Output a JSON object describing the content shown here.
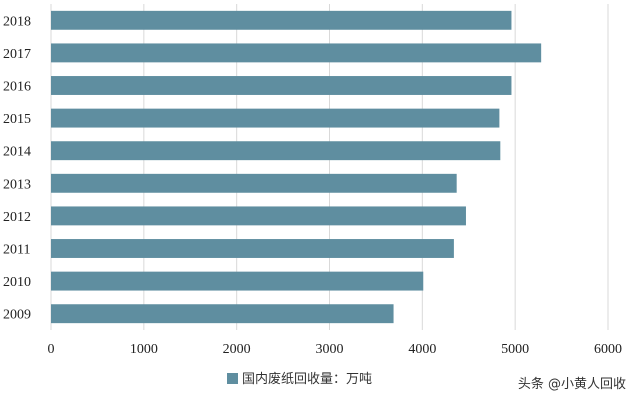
{
  "chart_data": {
    "type": "bar",
    "orientation": "horizontal",
    "categories": [
      "2018",
      "2017",
      "2016",
      "2015",
      "2014",
      "2013",
      "2012",
      "2011",
      "2010",
      "2009"
    ],
    "series": [
      {
        "name": "国内废纸回收量：万吨",
        "values": [
          4960,
          5280,
          4960,
          4830,
          4840,
          4370,
          4470,
          4340,
          4010,
          3690
        ]
      }
    ],
    "xlim": [
      0,
      6000
    ],
    "xticks": [
      0,
      1000,
      2000,
      3000,
      4000,
      5000,
      6000
    ],
    "grid": "vertical",
    "legend_position": "bottom",
    "bar_color": "#5f8ea0"
  },
  "watermark": "头条 @小黄人回收"
}
